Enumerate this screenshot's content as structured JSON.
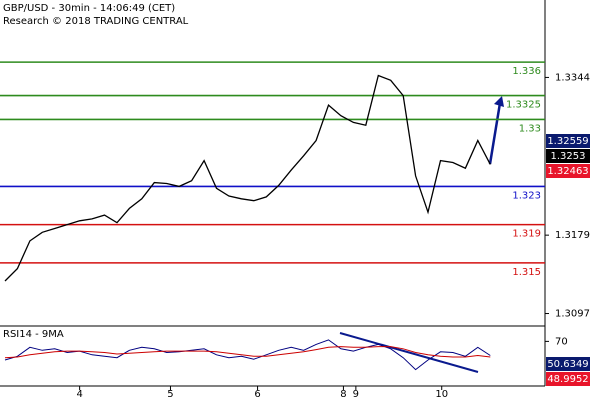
{
  "chart_data": [
    {
      "type": "line",
      "title": "GBP/USD - 30min - 14:06:49 (CET)",
      "subtitle": "Research © 2018 TRADING CENTRAL",
      "values": [
        1.3131,
        1.3144,
        1.3173,
        1.3182,
        1.3186,
        1.319,
        1.3194,
        1.3196,
        1.32,
        1.3192,
        1.3207,
        1.3217,
        1.3234,
        1.3233,
        1.323,
        1.3236,
        1.3257,
        1.3228,
        1.322,
        1.3217,
        1.3215,
        1.3219,
        1.3231,
        1.3247,
        1.3262,
        1.3278,
        1.3315,
        1.3304,
        1.3297,
        1.3294,
        1.3346,
        1.3341,
        1.3325,
        1.3241,
        1.3203,
        1.3257,
        1.3255,
        1.3249,
        1.3278,
        1.3253
      ],
      "color": "#000000",
      "xlim": [
        -0.4,
        43.4
      ],
      "ylim": [
        1.3085,
        1.3425
      ],
      "yticks": [
        1.3344,
        1.3179,
        1.3097
      ],
      "levels": [
        {
          "value": 1.336,
          "color": "#2e8b1e"
        },
        {
          "value": 1.3325,
          "color": "#2e8b1e"
        },
        {
          "value": 1.33,
          "color": "#2e8b1e"
        },
        {
          "value": 1.323,
          "color": "#1010c8"
        },
        {
          "value": 1.319,
          "color": "#d41010"
        },
        {
          "value": 1.315,
          "color": "#d41010"
        }
      ],
      "price_labels": [
        {
          "value": 1.32559,
          "color": "#0a1a6e"
        },
        {
          "value": 1.3253,
          "color": "#000000"
        },
        {
          "value": 1.32463,
          "color": "#e8142a"
        }
      ]
    },
    {
      "type": "line",
      "title": "RSI14 - 9MA",
      "series": [
        {
          "color": "#000080",
          "values": [
            45,
            50,
            62,
            58,
            60,
            55,
            57,
            52,
            50,
            48,
            58,
            62,
            60,
            55,
            56,
            58,
            60,
            52,
            48,
            50,
            46,
            52,
            58,
            62,
            58,
            66,
            72,
            60,
            57,
            62,
            66,
            60,
            48,
            32,
            45,
            56,
            55,
            50,
            62,
            51
          ]
        },
        {
          "color": "#cc0000",
          "values": [
            48,
            49,
            52,
            54,
            56,
            57,
            57,
            56,
            55,
            53,
            54,
            55,
            56,
            57,
            57,
            57,
            57,
            56,
            54,
            52,
            50,
            50,
            52,
            54,
            56,
            59,
            62,
            63,
            62,
            62,
            63,
            63,
            60,
            55,
            52,
            50,
            49,
            49,
            51,
            49
          ]
        }
      ],
      "xlim": [
        -0.4,
        43.4
      ],
      "ylim": [
        10,
        88
      ],
      "yticks": [
        70
      ],
      "xticks": [
        {
          "value": 6,
          "label": "4"
        },
        {
          "value": 13.3,
          "label": "5"
        },
        {
          "value": 20.3,
          "label": "6"
        },
        {
          "value": 27.2,
          "label": "8"
        },
        {
          "value": 28.2,
          "label": "9"
        },
        {
          "value": 35.1,
          "label": "10"
        }
      ],
      "last_values": [
        {
          "value": 50.6349,
          "color": "#0a1a6e"
        },
        {
          "value": 48.9952,
          "color": "#e8142a"
        }
      ]
    }
  ]
}
